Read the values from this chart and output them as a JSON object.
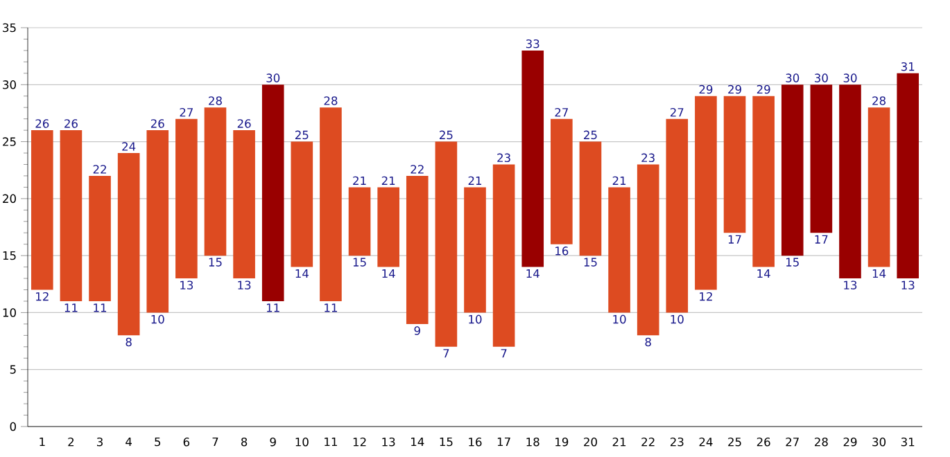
{
  "chart_data": {
    "type": "bar",
    "categories": [
      "1",
      "2",
      "3",
      "4",
      "5",
      "6",
      "7",
      "8",
      "9",
      "10",
      "11",
      "12",
      "13",
      "14",
      "15",
      "16",
      "17",
      "18",
      "19",
      "20",
      "21",
      "22",
      "23",
      "24",
      "25",
      "26",
      "27",
      "28",
      "29",
      "30",
      "31"
    ],
    "base": [
      12,
      11,
      11,
      8,
      10,
      13,
      15,
      13,
      11,
      14,
      11,
      15,
      14,
      9,
      7,
      10,
      7,
      14,
      16,
      15,
      10,
      8,
      10,
      12,
      17,
      14,
      15,
      17,
      13,
      14,
      13
    ],
    "values": [
      14,
      15,
      11,
      16,
      16,
      14,
      13,
      13,
      19,
      11,
      17,
      6,
      7,
      13,
      18,
      11,
      16,
      19,
      11,
      10,
      11,
      15,
      17,
      17,
      12,
      15,
      15,
      13,
      17,
      14,
      18
    ],
    "colors": [
      "#dd4b21",
      "#dd4b21",
      "#dd4b21",
      "#dd4b21",
      "#dd4b21",
      "#dd4b21",
      "#dd4b21",
      "#dd4b21",
      "#990000",
      "#dd4b21",
      "#dd4b21",
      "#dd4b21",
      "#dd4b21",
      "#dd4b21",
      "#dd4b21",
      "#dd4b21",
      "#dd4b21",
      "#990000",
      "#dd4b21",
      "#dd4b21",
      "#dd4b21",
      "#dd4b21",
      "#dd4b21",
      "#dd4b21",
      "#dd4b21",
      "#dd4b21",
      "#990000",
      "#990000",
      "#990000",
      "#dd4b21",
      "#990000"
    ],
    "ylim": [
      0,
      35
    ],
    "yticks": [
      0,
      5,
      10,
      15,
      20,
      25,
      30,
      35
    ],
    "grid": "y",
    "annotations": [
      {
        "text": "26",
        "x": "1",
        "y": 26
      },
      {
        "text": "12",
        "x": "1",
        "y": 12
      },
      {
        "text": "26",
        "x": "2",
        "y": 26
      },
      {
        "text": "11",
        "x": "2",
        "y": 11
      },
      {
        "text": "22",
        "x": "3",
        "y": 22
      },
      {
        "text": "11",
        "x": "3",
        "y": 11
      },
      {
        "text": "24",
        "x": "4",
        "y": 24
      },
      {
        "text": "8",
        "x": "4",
        "y": 8
      },
      {
        "text": "26",
        "x": "5",
        "y": 26
      },
      {
        "text": "10",
        "x": "5",
        "y": 10
      },
      {
        "text": "27",
        "x": "6",
        "y": 27
      },
      {
        "text": "13",
        "x": "6",
        "y": 13
      },
      {
        "text": "28",
        "x": "7",
        "y": 28
      },
      {
        "text": "15",
        "x": "7",
        "y": 15
      },
      {
        "text": "26",
        "x": "8",
        "y": 26
      },
      {
        "text": "13",
        "x": "8",
        "y": 13
      },
      {
        "text": "30",
        "x": "9",
        "y": 30
      },
      {
        "text": "11",
        "x": "9",
        "y": 11
      },
      {
        "text": "25",
        "x": "10",
        "y": 25
      },
      {
        "text": "14",
        "x": "10",
        "y": 14
      },
      {
        "text": "28",
        "x": "11",
        "y": 28
      },
      {
        "text": "11",
        "x": "11",
        "y": 11
      },
      {
        "text": "21",
        "x": "12",
        "y": 21
      },
      {
        "text": "15",
        "x": "12",
        "y": 15
      },
      {
        "text": "21",
        "x": "13",
        "y": 21
      },
      {
        "text": "14",
        "x": "13",
        "y": 14
      },
      {
        "text": "22",
        "x": "14",
        "y": 22
      },
      {
        "text": "9",
        "x": "14",
        "y": 9
      },
      {
        "text": "25",
        "x": "15",
        "y": 25
      },
      {
        "text": "7",
        "x": "15",
        "y": 7
      },
      {
        "text": "21",
        "x": "16",
        "y": 21
      },
      {
        "text": "10",
        "x": "16",
        "y": 10
      },
      {
        "text": "23",
        "x": "17",
        "y": 23
      },
      {
        "text": "7",
        "x": "17",
        "y": 7
      },
      {
        "text": "33",
        "x": "18",
        "y": 33
      },
      {
        "text": "14",
        "x": "18",
        "y": 14
      },
      {
        "text": "27",
        "x": "19",
        "y": 27
      },
      {
        "text": "16",
        "x": "19",
        "y": 16
      },
      {
        "text": "25",
        "x": "20",
        "y": 25
      },
      {
        "text": "15",
        "x": "20",
        "y": 15
      },
      {
        "text": "21",
        "x": "21",
        "y": 21
      },
      {
        "text": "10",
        "x": "21",
        "y": 10
      },
      {
        "text": "23",
        "x": "22",
        "y": 23
      },
      {
        "text": "8",
        "x": "22",
        "y": 8
      },
      {
        "text": "27",
        "x": "23",
        "y": 27
      },
      {
        "text": "10",
        "x": "23",
        "y": 10
      },
      {
        "text": "29",
        "x": "24",
        "y": 29
      },
      {
        "text": "12",
        "x": "24",
        "y": 12
      },
      {
        "text": "29",
        "x": "25",
        "y": 29
      },
      {
        "text": "17",
        "x": "25",
        "y": 17
      },
      {
        "text": "29",
        "x": "26",
        "y": 29
      },
      {
        "text": "14",
        "x": "26",
        "y": 14
      },
      {
        "text": "30",
        "x": "27",
        "y": 30
      },
      {
        "text": "15",
        "x": "27",
        "y": 15
      },
      {
        "text": "30",
        "x": "28",
        "y": 30
      },
      {
        "text": "17",
        "x": "28",
        "y": 17
      },
      {
        "text": "30",
        "x": "29",
        "y": 30
      },
      {
        "text": "13",
        "x": "29",
        "y": 13
      },
      {
        "text": "28",
        "x": "30",
        "y": 28
      },
      {
        "text": "14",
        "x": "30",
        "y": 14
      },
      {
        "text": "31",
        "x": "31",
        "y": 31
      },
      {
        "text": "13",
        "x": "31",
        "y": 13
      }
    ]
  }
}
